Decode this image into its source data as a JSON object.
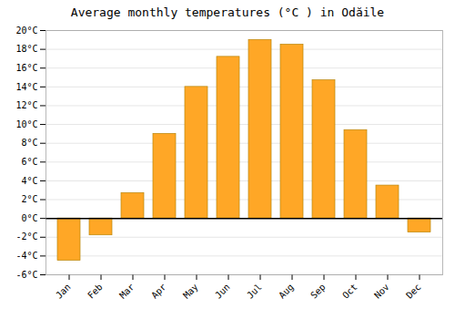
{
  "chart_data": {
    "type": "bar",
    "title": "Average monthly temperatures (°C ) in Odăile",
    "categories": [
      "Jan",
      "Feb",
      "Mar",
      "Apr",
      "May",
      "Jun",
      "Jul",
      "Aug",
      "Sep",
      "Oct",
      "Nov",
      "Dec"
    ],
    "values": [
      -4.5,
      -1.8,
      2.7,
      9.0,
      14.0,
      17.2,
      19.0,
      18.5,
      14.7,
      9.4,
      3.5,
      -1.5
    ],
    "color": "#FFA726",
    "ylim": [
      -6,
      20
    ],
    "yticks": [
      {
        "value": -6,
        "label": "-6°C"
      },
      {
        "value": -4,
        "label": "-4°C"
      },
      {
        "value": -2,
        "label": "-2°C"
      },
      {
        "value": 0,
        "label": "0°C"
      },
      {
        "value": 2,
        "label": "2°C"
      },
      {
        "value": 4,
        "label": "4°C"
      },
      {
        "value": 6,
        "label": "6°C"
      },
      {
        "value": 8,
        "label": "8°C"
      },
      {
        "value": 10,
        "label": "10°C"
      },
      {
        "value": 12,
        "label": "12°C"
      },
      {
        "value": 14,
        "label": "14°C"
      },
      {
        "value": 16,
        "label": "16°C"
      },
      {
        "value": 18,
        "label": "18°C"
      },
      {
        "value": 20,
        "label": "20°C"
      }
    ],
    "grid": true
  }
}
